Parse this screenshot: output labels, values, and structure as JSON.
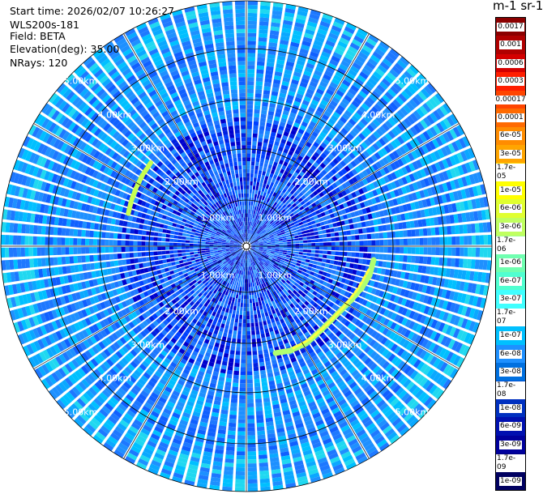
{
  "header": {
    "start_time": "Start time: 2026/02/07 10:26:27",
    "instrument": "WLS200s-181",
    "field": "Field: BETA",
    "elevation": "Elevation(deg): 35.00",
    "nrays": "NRays: 120"
  },
  "colorbar": {
    "unit_title": "m-1 sr-1",
    "labels": [
      "0.0017",
      "0.001",
      "0.0006",
      "0.0003",
      "0.00017",
      "0.0001",
      "6e-05",
      "3e-05",
      "1.7e-05",
      "1e-05",
      "6e-06",
      "3e-06",
      "1.7e-06",
      "1e-06",
      "6e-07",
      "3e-07",
      "1.7e-07",
      "1e-07",
      "6e-08",
      "3e-08",
      "1.7e-08",
      "1e-08",
      "6e-09",
      "3e-09",
      "1.7e-09",
      "1e-09"
    ],
    "colors": [
      "#8b0000",
      "#b00000",
      "#d40000",
      "#ff1e00",
      "#ff4500",
      "#ff6a00",
      "#ff8c00",
      "#ffa500",
      "#ffd700",
      "#ffff00",
      "#e0ff30",
      "#c0ff60",
      "#a0ff90",
      "#70ffb0",
      "#50ffd0",
      "#40ffff",
      "#00e0ff",
      "#00c0ff",
      "#1e90ff",
      "#0070e0",
      "#0050d0",
      "#0030c0",
      "#0010b0",
      "#00009c",
      "#000080",
      "#000060"
    ]
  },
  "ppi": {
    "range_rings_km": [
      "1.00km",
      "2.00km",
      "3.00km",
      "4.00km",
      "5.00km"
    ],
    "nrays": 120
  }
}
